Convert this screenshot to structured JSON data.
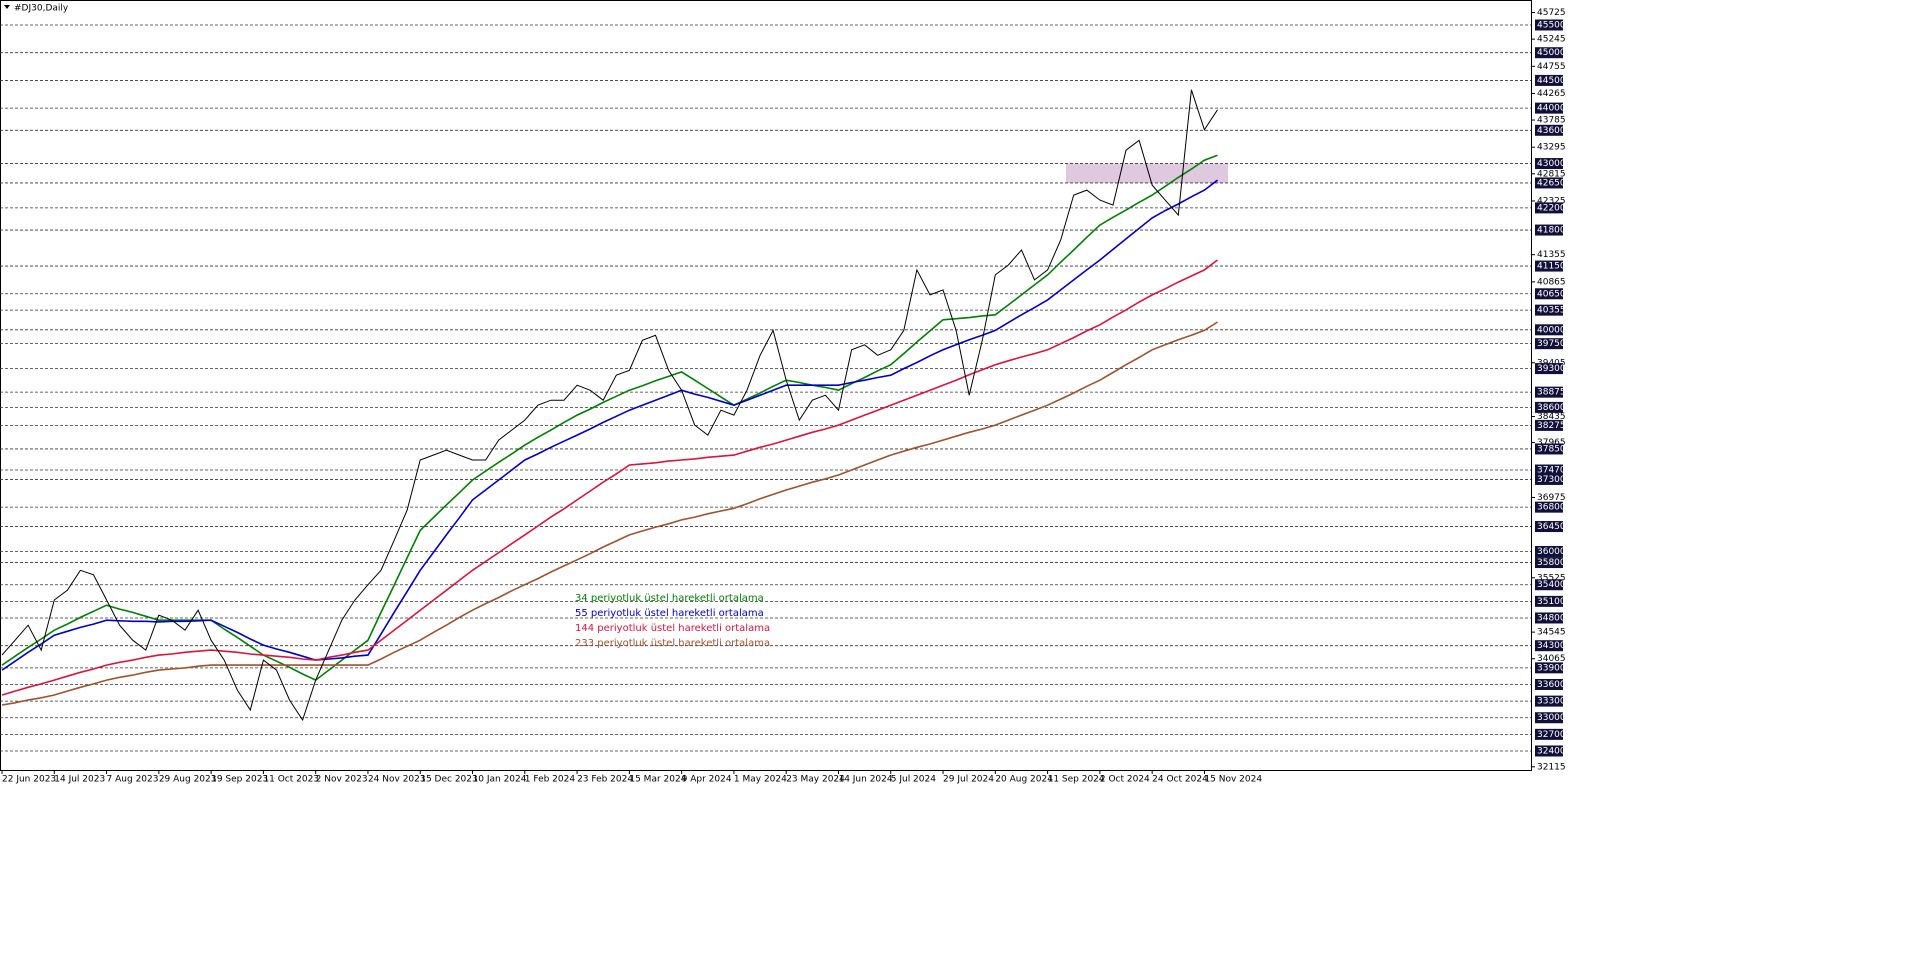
{
  "chart_data": {
    "type": "line",
    "title": "#DJ30,Daily",
    "categories": [
      "22 Jun 2023",
      null,
      null,
      null,
      "14 Jul 2023",
      null,
      null,
      null,
      "7 Aug 2023",
      null,
      null,
      null,
      "29 Aug 2023",
      null,
      null,
      null,
      "19 Sep 2023",
      null,
      null,
      null,
      "11 Oct 2023",
      null,
      null,
      null,
      "2 Nov 2023",
      null,
      null,
      null,
      "24 Nov 2023",
      null,
      null,
      null,
      "15 Dec 2023",
      null,
      null,
      null,
      "10 Jan 2024",
      null,
      null,
      null,
      "1 Feb 2024",
      null,
      null,
      null,
      "23 Feb 2024",
      null,
      null,
      null,
      "15 Mar 2024",
      null,
      null,
      null,
      "9 Apr 2024",
      null,
      null,
      null,
      "1 May 2024",
      null,
      null,
      null,
      "23 May 2024",
      null,
      null,
      null,
      "14 Jun 2024",
      null,
      null,
      null,
      "5 Jul 2024",
      null,
      null,
      null,
      "29 Jul 2024",
      null,
      null,
      null,
      "20 Aug 2024",
      null,
      null,
      null,
      "11 Sep 2024",
      null,
      null,
      null,
      "2 Oct 2024",
      null,
      null,
      null,
      "24 Oct 2024",
      null,
      null,
      null,
      "15 Nov 2024",
      null
    ],
    "price": {
      "color": "#000000",
      "values": [
        34130,
        34400,
        34670,
        34220,
        35125,
        35300,
        35660,
        35580,
        35125,
        34670,
        34400,
        34220,
        34850,
        34760,
        34580,
        34940,
        34400,
        34040,
        33500,
        33140,
        34040,
        33860,
        33320,
        32960,
        33680,
        34220,
        34760,
        35125,
        35400,
        35660,
        36200,
        36750,
        37650,
        37740,
        37830,
        37740,
        37650,
        37650,
        38010,
        38190,
        38370,
        38640,
        38730,
        38730,
        39000,
        38910,
        38730,
        39180,
        39270,
        39810,
        39900,
        39270,
        38910,
        38280,
        38100,
        38550,
        38460,
        38910,
        39540,
        39990,
        39090,
        38370,
        38730,
        38820,
        38550,
        39640,
        39730,
        39540,
        39640,
        39990,
        41080,
        40630,
        40720,
        39990,
        38820,
        39810,
        40990,
        41170,
        41440,
        40900,
        41080,
        41620,
        42430,
        42520,
        42340,
        42250,
        43240,
        43420,
        42610,
        42340,
        42070,
        44330,
        43610,
        43970
      ]
    },
    "series": [
      {
        "name": "34 periyotluk üstel hareketli ortalama",
        "color": "#008000",
        "values": [
          33950,
          34110,
          34270,
          34420,
          34580,
          34690,
          34810,
          34920,
          35030,
          34960,
          34900,
          34830,
          34760,
          34760,
          34760,
          34760,
          34760,
          34600,
          34450,
          34290,
          34130,
          34020,
          33910,
          33790,
          33680,
          33860,
          34040,
          34220,
          34400,
          34900,
          35390,
          35890,
          36380,
          36610,
          36840,
          37060,
          37290,
          37450,
          37610,
          37760,
          37920,
          38060,
          38190,
          38330,
          38460,
          38570,
          38690,
          38800,
          38910,
          38990,
          39080,
          39160,
          39240,
          39090,
          38940,
          38790,
          38640,
          38750,
          38860,
          38980,
          39090,
          39050,
          39000,
          38960,
          38910,
          39030,
          39140,
          39260,
          39370,
          39570,
          39780,
          39980,
          40180,
          40200,
          40220,
          40250,
          40270,
          40450,
          40630,
          40810,
          40990,
          41220,
          41440,
          41670,
          41890,
          42030,
          42160,
          42300,
          42430,
          42590,
          42750,
          42900,
          43060,
          43150
        ]
      },
      {
        "name": "55 periyotluk üstel hareketli ortalama",
        "color": "#0000cc",
        "values": [
          33860,
          34020,
          34180,
          34330,
          34490,
          34560,
          34630,
          34690,
          34760,
          34750,
          34740,
          34740,
          34730,
          34740,
          34740,
          34750,
          34760,
          34650,
          34540,
          34420,
          34310,
          34240,
          34180,
          34110,
          34040,
          34060,
          34080,
          34110,
          34130,
          34510,
          34900,
          35280,
          35660,
          35980,
          36300,
          36610,
          36930,
          37110,
          37290,
          37470,
          37650,
          37760,
          37880,
          37990,
          38100,
          38210,
          38330,
          38440,
          38550,
          38640,
          38730,
          38820,
          38910,
          38840,
          38780,
          38710,
          38640,
          38730,
          38820,
          38910,
          39000,
          39000,
          39000,
          39000,
          39000,
          39050,
          39090,
          39140,
          39180,
          39300,
          39410,
          39530,
          39640,
          39730,
          39820,
          39900,
          39990,
          40130,
          40270,
          40400,
          40540,
          40720,
          40900,
          41080,
          41260,
          41450,
          41640,
          41830,
          42020,
          42150,
          42270,
          42400,
          42520,
          42700
        ]
      },
      {
        "name": "144 periyotluk üstel hareketli ortalama",
        "color": "#dc143c",
        "values": [
          33410,
          33480,
          33550,
          33610,
          33680,
          33750,
          33820,
          33880,
          33950,
          34000,
          34040,
          34090,
          34130,
          34150,
          34180,
          34200,
          34220,
          34200,
          34180,
          34150,
          34130,
          34110,
          34090,
          34060,
          34040,
          34090,
          34130,
          34180,
          34220,
          34400,
          34580,
          34760,
          34940,
          35120,
          35300,
          35480,
          35660,
          35820,
          35980,
          36140,
          36300,
          36460,
          36620,
          36770,
          36930,
          37090,
          37250,
          37400,
          37560,
          37580,
          37600,
          37630,
          37650,
          37670,
          37700,
          37720,
          37740,
          37810,
          37880,
          37940,
          38010,
          38080,
          38150,
          38210,
          38280,
          38370,
          38460,
          38550,
          38640,
          38730,
          38820,
          38910,
          39000,
          39090,
          39190,
          39280,
          39370,
          39440,
          39510,
          39570,
          39640,
          39750,
          39860,
          39980,
          40090,
          40230,
          40360,
          40500,
          40630,
          40740,
          40860,
          40970,
          41080,
          41260
        ]
      },
      {
        "name": "233 periyotluk üstel hareketli ortalama",
        "color": "#a0522d",
        "values": [
          33230,
          33270,
          33320,
          33360,
          33410,
          33480,
          33550,
          33610,
          33680,
          33730,
          33770,
          33820,
          33860,
          33880,
          33900,
          33930,
          33950,
          33950,
          33950,
          33950,
          33950,
          33950,
          33950,
          33950,
          33950,
          33950,
          33950,
          33950,
          33950,
          34060,
          34180,
          34290,
          34400,
          34540,
          34670,
          34810,
          34940,
          35060,
          35170,
          35290,
          35400,
          35510,
          35630,
          35740,
          35850,
          35960,
          36080,
          36190,
          36300,
          36370,
          36440,
          36500,
          36570,
          36620,
          36680,
          36730,
          36780,
          36860,
          36950,
          37030,
          37110,
          37180,
          37250,
          37310,
          37380,
          37470,
          37560,
          37650,
          37740,
          37810,
          37880,
          37940,
          38010,
          38080,
          38150,
          38210,
          38280,
          38370,
          38460,
          38550,
          38640,
          38750,
          38860,
          38980,
          39090,
          39230,
          39370,
          39500,
          39640,
          39730,
          39820,
          39900,
          39990,
          40140
        ]
      }
    ],
    "zone": {
      "low": 42650,
      "high": 43000,
      "color": "#d8bfd8"
    },
    "ylim": [
      32057,
      45951
    ],
    "yticks": [
      45725,
      45245,
      44755,
      44265,
      43785,
      43295,
      42815,
      42325,
      41355,
      40865,
      39405,
      38435,
      37965,
      36975,
      35525,
      34545,
      34065,
      32115
    ],
    "levels": [
      45500,
      45000,
      44500,
      44000,
      43600,
      43000,
      42650,
      42200,
      41800,
      41150,
      40650,
      40355,
      40000,
      39750,
      39300,
      38875,
      38600,
      38275,
      37850,
      37470,
      37300,
      36800,
      36450,
      36000,
      35800,
      35400,
      35100,
      34800,
      34300,
      33900,
      33600,
      33300,
      33000,
      32700,
      32400
    ]
  }
}
